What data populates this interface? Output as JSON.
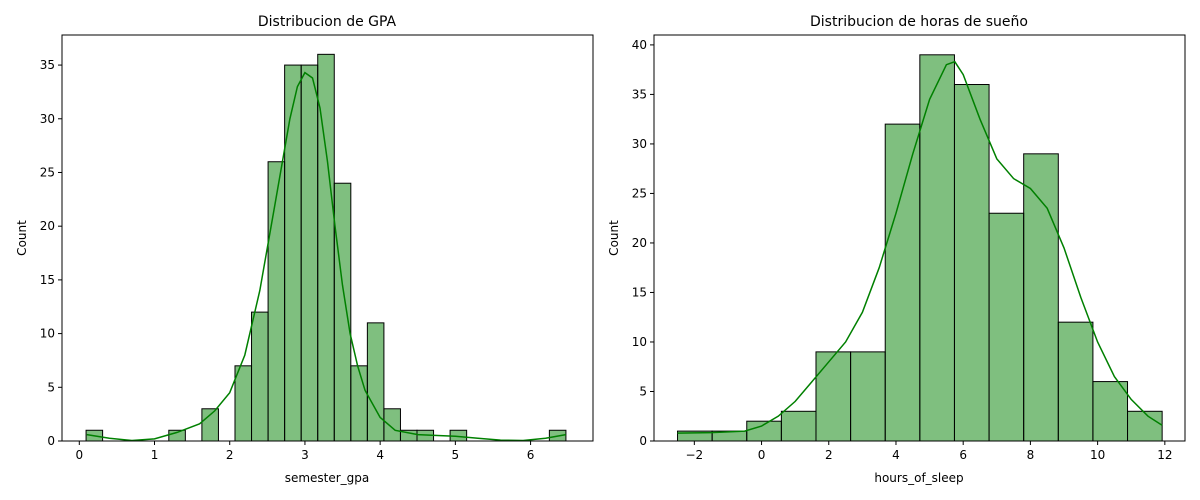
{
  "chart_data": [
    {
      "type": "histogram",
      "title": "Distribucion de GPA",
      "xlabel": "semester_gpa",
      "ylabel": "Count",
      "xlim": [
        -0.23,
        6.83
      ],
      "ylim": [
        0,
        37.8
      ],
      "xticks": [
        0,
        1,
        2,
        3,
        4,
        5,
        6
      ],
      "yticks": [
        0,
        5,
        10,
        15,
        20,
        25,
        30,
        35
      ],
      "bar_color": "#008000",
      "bar_alpha": 0.5,
      "kde_color": "#008000",
      "bins": [
        {
          "x0": 0.09,
          "x1": 0.31,
          "count": 1
        },
        {
          "x0": 0.31,
          "x1": 0.53,
          "count": 0
        },
        {
          "x0": 0.53,
          "x1": 0.75,
          "count": 0
        },
        {
          "x0": 0.75,
          "x1": 0.97,
          "count": 0
        },
        {
          "x0": 0.97,
          "x1": 1.19,
          "count": 0
        },
        {
          "x0": 1.19,
          "x1": 1.41,
          "count": 1
        },
        {
          "x0": 1.41,
          "x1": 1.63,
          "count": 0
        },
        {
          "x0": 1.63,
          "x1": 1.85,
          "count": 3
        },
        {
          "x0": 1.85,
          "x1": 2.07,
          "count": 0
        },
        {
          "x0": 2.07,
          "x1": 2.29,
          "count": 7
        },
        {
          "x0": 2.29,
          "x1": 2.51,
          "count": 12
        },
        {
          "x0": 2.51,
          "x1": 2.73,
          "count": 26
        },
        {
          "x0": 2.73,
          "x1": 2.95,
          "count": 35
        },
        {
          "x0": 2.95,
          "x1": 3.17,
          "count": 35
        },
        {
          "x0": 3.17,
          "x1": 3.39,
          "count": 36
        },
        {
          "x0": 3.39,
          "x1": 3.61,
          "count": 24
        },
        {
          "x0": 3.61,
          "x1": 3.83,
          "count": 7
        },
        {
          "x0": 3.83,
          "x1": 4.05,
          "count": 11
        },
        {
          "x0": 4.05,
          "x1": 4.27,
          "count": 3
        },
        {
          "x0": 4.27,
          "x1": 4.49,
          "count": 1
        },
        {
          "x0": 4.49,
          "x1": 4.71,
          "count": 1
        },
        {
          "x0": 4.71,
          "x1": 4.93,
          "count": 0
        },
        {
          "x0": 4.93,
          "x1": 5.15,
          "count": 1
        },
        {
          "x0": 5.15,
          "x1": 5.37,
          "count": 0
        },
        {
          "x0": 5.37,
          "x1": 5.59,
          "count": 0
        },
        {
          "x0": 5.59,
          "x1": 5.81,
          "count": 0
        },
        {
          "x0": 5.81,
          "x1": 6.03,
          "count": 0
        },
        {
          "x0": 6.03,
          "x1": 6.25,
          "count": 0
        },
        {
          "x0": 6.25,
          "x1": 6.47,
          "count": 1
        }
      ],
      "kde": [
        [
          0.1,
          0.6
        ],
        [
          0.4,
          0.25
        ],
        [
          0.7,
          0.05
        ],
        [
          1.0,
          0.2
        ],
        [
          1.3,
          0.8
        ],
        [
          1.6,
          1.6
        ],
        [
          1.8,
          2.8
        ],
        [
          2.0,
          4.5
        ],
        [
          2.2,
          8.0
        ],
        [
          2.4,
          14.0
        ],
        [
          2.6,
          22.0
        ],
        [
          2.8,
          30.0
        ],
        [
          2.9,
          33.0
        ],
        [
          3.0,
          34.3
        ],
        [
          3.1,
          33.8
        ],
        [
          3.2,
          31.0
        ],
        [
          3.3,
          26.0
        ],
        [
          3.4,
          20.0
        ],
        [
          3.5,
          14.5
        ],
        [
          3.6,
          10.0
        ],
        [
          3.7,
          7.0
        ],
        [
          3.8,
          4.7
        ],
        [
          4.0,
          2.2
        ],
        [
          4.2,
          1.0
        ],
        [
          4.5,
          0.6
        ],
        [
          4.8,
          0.5
        ],
        [
          5.0,
          0.45
        ],
        [
          5.3,
          0.25
        ],
        [
          5.6,
          0.08
        ],
        [
          5.9,
          0.05
        ],
        [
          6.2,
          0.25
        ],
        [
          6.47,
          0.6
        ]
      ]
    },
    {
      "type": "histogram",
      "title": "Distribucion de horas de sueño",
      "xlabel": "hours_of_sleep",
      "ylabel": "Count",
      "xlim": [
        -3.2,
        12.6
      ],
      "ylim": [
        0,
        41
      ],
      "xticks": [
        -2,
        0,
        2,
        4,
        6,
        8,
        10,
        12
      ],
      "yticks": [
        0,
        5,
        10,
        15,
        20,
        25,
        30,
        35,
        40
      ],
      "bar_color": "#008000",
      "bar_alpha": 0.5,
      "kde_color": "#008000",
      "bins": [
        {
          "x0": -2.5,
          "x1": -1.47,
          "count": 1
        },
        {
          "x0": -1.47,
          "x1": -0.44,
          "count": 1
        },
        {
          "x0": -0.44,
          "x1": 0.59,
          "count": 2
        },
        {
          "x0": 0.59,
          "x1": 1.62,
          "count": 3
        },
        {
          "x0": 1.62,
          "x1": 2.65,
          "count": 9
        },
        {
          "x0": 2.65,
          "x1": 3.68,
          "count": 9
        },
        {
          "x0": 3.68,
          "x1": 4.71,
          "count": 32
        },
        {
          "x0": 4.71,
          "x1": 5.74,
          "count": 39
        },
        {
          "x0": 5.74,
          "x1": 6.77,
          "count": 36
        },
        {
          "x0": 6.77,
          "x1": 7.8,
          "count": 23
        },
        {
          "x0": 7.8,
          "x1": 8.83,
          "count": 29
        },
        {
          "x0": 8.83,
          "x1": 9.86,
          "count": 12
        },
        {
          "x0": 9.86,
          "x1": 10.89,
          "count": 6
        },
        {
          "x0": 10.89,
          "x1": 11.92,
          "count": 3
        }
      ],
      "kde": [
        [
          -2.5,
          0.8
        ],
        [
          -1.5,
          0.85
        ],
        [
          -0.5,
          1.0
        ],
        [
          0.0,
          1.5
        ],
        [
          0.5,
          2.5
        ],
        [
          1.0,
          4.0
        ],
        [
          1.5,
          6.0
        ],
        [
          2.0,
          8.0
        ],
        [
          2.5,
          10.0
        ],
        [
          3.0,
          13.0
        ],
        [
          3.5,
          17.5
        ],
        [
          4.0,
          23.0
        ],
        [
          4.5,
          29.0
        ],
        [
          5.0,
          34.5
        ],
        [
          5.5,
          38.0
        ],
        [
          5.75,
          38.3
        ],
        [
          6.0,
          37.0
        ],
        [
          6.5,
          32.5
        ],
        [
          7.0,
          28.5
        ],
        [
          7.5,
          26.5
        ],
        [
          8.0,
          25.5
        ],
        [
          8.5,
          23.5
        ],
        [
          9.0,
          19.5
        ],
        [
          9.5,
          14.5
        ],
        [
          10.0,
          10.0
        ],
        [
          10.5,
          6.5
        ],
        [
          11.0,
          4.2
        ],
        [
          11.5,
          2.5
        ],
        [
          11.92,
          1.6
        ]
      ]
    }
  ]
}
